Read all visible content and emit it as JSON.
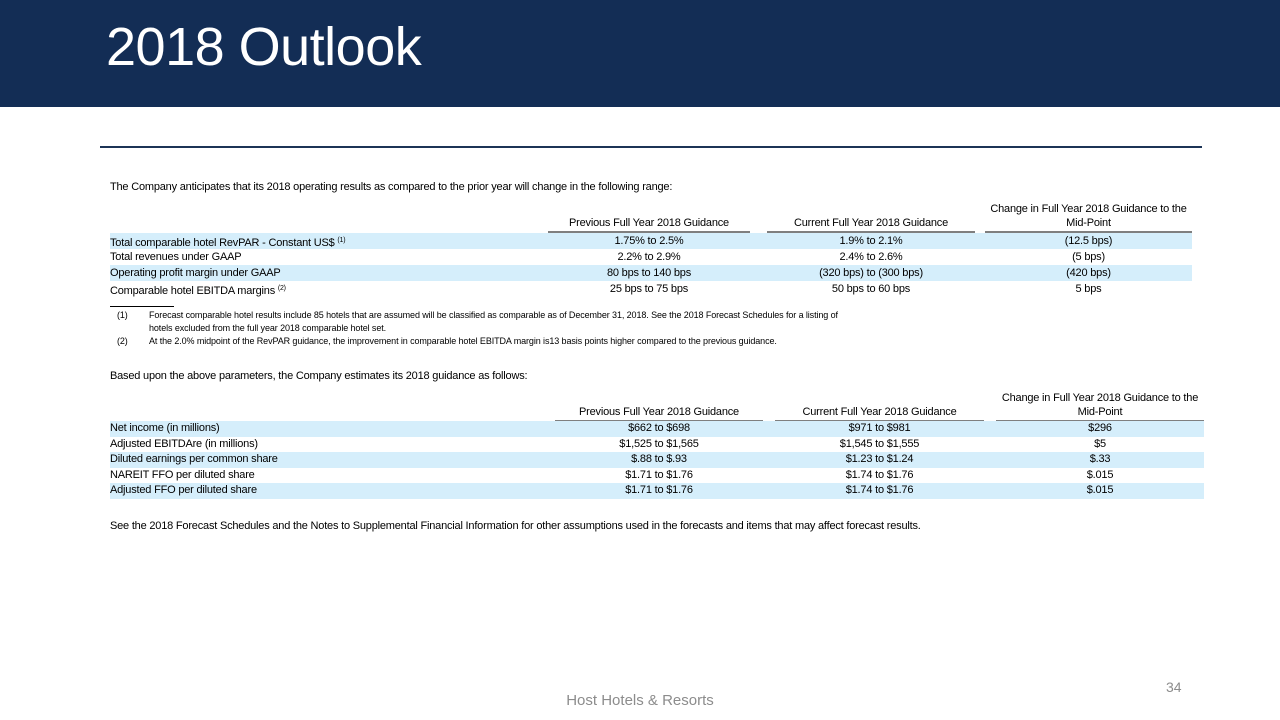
{
  "title": "2018 Outlook",
  "intro1": "The Company anticipates that its 2018 operating results as compared to the prior year will change in the following range:",
  "table1": {
    "headers": [
      "Previous Full Year 2018 Guidance",
      "Current Full Year 2018 Guidance",
      "Change in Full Year 2018 Guidance to the Mid-Point"
    ],
    "rows": [
      {
        "label": "Total comparable hotel RevPAR - Constant US$",
        "note": "(1)",
        "prev": "1.75% to 2.5%",
        "curr": "1.9% to 2.1%",
        "change": "(12.5 bps)"
      },
      {
        "label": "Total revenues under GAAP",
        "note": "",
        "prev": "2.2% to 2.9%",
        "curr": "2.4% to 2.6%",
        "change": "(5 bps)"
      },
      {
        "label": "Operating profit margin under GAAP",
        "note": "",
        "prev": "80 bps to 140 bps",
        "curr": "(320 bps) to (300 bps)",
        "change": "(420 bps)"
      },
      {
        "label": "Comparable hotel EBITDA margins",
        "note": "(2)",
        "prev": "25 bps to 75 bps",
        "curr": "50 bps to 60 bps",
        "change": "5 bps"
      }
    ]
  },
  "footnotes": [
    {
      "num": "(1)",
      "line1": "Forecast comparable hotel results include 85 hotels that are assumed will be classified as comparable as of December 31, 2018. See the 2018 Forecast Schedules for a listing of",
      "line2": "hotels excluded from the full year 2018 comparable hotel set."
    },
    {
      "num": "(2)",
      "line1": "At the 2.0% midpoint of the RevPAR guidance, the improvement in comparable hotel EBITDA  margin is13 basis points higher compared to the previous guidance."
    }
  ],
  "intro2": "Based upon the above parameters, the Company estimates its 2018 guidance as follows:",
  "table2": {
    "headers": [
      "Previous Full Year 2018 Guidance",
      "Current Full Year 2018 Guidance",
      "Change in Full Year 2018 Guidance to the Mid-Point"
    ],
    "rows": [
      {
        "label": "Net income (in millions)",
        "prev": "$662 to $698",
        "curr": "$971 to $981",
        "change": "$296"
      },
      {
        "label": "Adjusted EBITDAre (in millions)",
        "prev": "$1,525 to $1,565",
        "curr": "$1,545 to $1,555",
        "change": "$5"
      },
      {
        "label": "Diluted earnings per common share",
        "prev": "$.88 to $.93",
        "curr": "$1.23 to $1.24",
        "change": "$.33"
      },
      {
        "label": "NAREIT FFO  per diluted share",
        "prev": "$1.71 to $1.76",
        "curr": "$1.74 to $1.76",
        "change": "$.015"
      },
      {
        "label": "Adjusted FFO  per diluted share",
        "prev": "$1.71 to $1.76",
        "curr": "$1.74 to $1.76",
        "change": "$.015"
      }
    ]
  },
  "closing": "See the 2018 Forecast Schedules and the Notes to Supplemental Financial Information for other assumptions used in the forecasts and items that may affect forecast results.",
  "page_number": "34",
  "footer": "Host Hotels & Resorts"
}
